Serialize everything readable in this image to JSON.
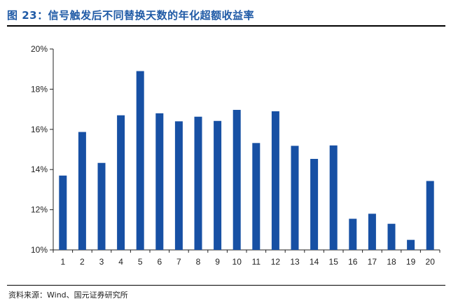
{
  "figure": {
    "title": "图 23：信号触发后不同替换天数的年化超额收益率",
    "source": "资料来源：Wind、国元证券研究所"
  },
  "chart_data": {
    "type": "bar",
    "title": "",
    "xlabel": "",
    "ylabel": "",
    "categories": [
      "1",
      "2",
      "3",
      "4",
      "5",
      "6",
      "7",
      "8",
      "9",
      "10",
      "11",
      "12",
      "13",
      "14",
      "15",
      "16",
      "17",
      "18",
      "19",
      "20"
    ],
    "series": [
      {
        "values": [
          13.7,
          15.87,
          14.33,
          16.7,
          18.9,
          16.8,
          16.4,
          16.63,
          16.42,
          16.97,
          15.32,
          16.9,
          15.18,
          14.53,
          15.2,
          11.55,
          11.8,
          11.3,
          10.5,
          13.43
        ]
      }
    ],
    "ylim": [
      10,
      20
    ],
    "yticks": [
      10,
      12,
      14,
      16,
      18,
      20
    ],
    "ytick_labels": [
      "10%",
      "12%",
      "14%",
      "16%",
      "18%",
      "20%"
    ],
    "grid": false,
    "bar_color": "#1750a4"
  }
}
